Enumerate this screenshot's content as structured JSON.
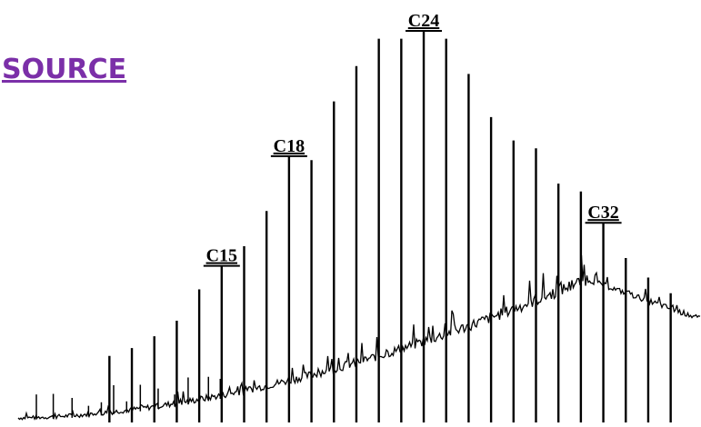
{
  "chart_data": {
    "type": "chromatogram",
    "title": "SOURCE",
    "categories": [
      null,
      null,
      null,
      null,
      null,
      "C15",
      null,
      null,
      "C18",
      null,
      null,
      null,
      null,
      null,
      "C24",
      null,
      null,
      null,
      null,
      null,
      null,
      null,
      "C32",
      null,
      null,
      null
    ],
    "values": [
      17,
      19,
      22,
      26,
      34,
      40,
      45,
      54,
      68,
      67,
      82,
      91,
      98,
      98,
      100,
      98,
      89,
      78,
      72,
      70,
      61,
      59,
      51,
      42,
      37,
      33
    ],
    "color": "#000000",
    "title_color": "#7b2fa8",
    "ylim": [
      0,
      100
    ]
  }
}
